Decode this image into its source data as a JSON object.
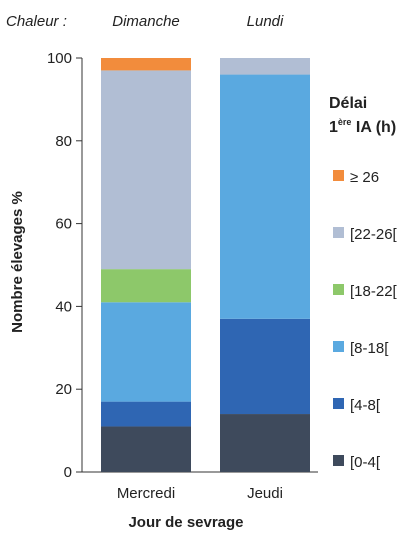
{
  "chart_data": {
    "type": "bar",
    "stacked": true,
    "annotations": {
      "chaleur_label": "Chaleur :",
      "chaleur_values": [
        "Dimanche",
        "Lundi"
      ]
    },
    "categories": [
      "Mercredi",
      "Jeudi"
    ],
    "xlabel": "Jour de sevrage",
    "ylabel": "Nombre élevages %",
    "ylim": [
      0,
      100
    ],
    "yticks": [
      0,
      20,
      40,
      60,
      80,
      100
    ],
    "legend": {
      "title_line1": "Délai",
      "title_line2_prefix": "1",
      "title_line2_sup": "ère",
      "title_line2_suffix": " IA (h)",
      "placement": "right"
    },
    "series": [
      {
        "name": "[0-4[",
        "color": "#3e4a5c",
        "values": [
          11,
          14
        ]
      },
      {
        "name": "[4-8[",
        "color": "#2f66b3",
        "values": [
          6,
          23
        ]
      },
      {
        "name": "[8-18[",
        "color": "#5aa9e0",
        "values": [
          24,
          59
        ]
      },
      {
        "name": "[18-22[",
        "color": "#8dc86a",
        "values": [
          8,
          0
        ]
      },
      {
        "name": "[22-26[",
        "color": "#b1bed4",
        "values": [
          48,
          4
        ]
      },
      {
        "name": "≥ 26",
        "color": "#f28c3c",
        "values": [
          3,
          0
        ]
      }
    ]
  }
}
